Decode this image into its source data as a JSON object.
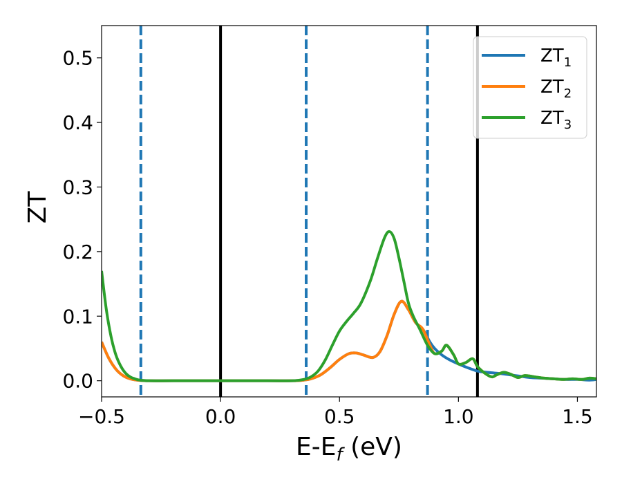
{
  "chart_data": {
    "type": "line",
    "title": "",
    "xlabel": "E-E",
    "xlabel_sub": "f",
    "xlabel_unit": " (eV)",
    "ylabel": "ZT",
    "xlim": [
      -0.5,
      1.58
    ],
    "ylim": [
      -0.025,
      0.55
    ],
    "xticks": [
      -0.5,
      0.0,
      0.5,
      1.0,
      1.5
    ],
    "xtick_labels": [
      "−0.5",
      "0.0",
      "0.5",
      "1.0",
      "1.5"
    ],
    "yticks": [
      0.0,
      0.1,
      0.2,
      0.3,
      0.4,
      0.5
    ],
    "ytick_labels": [
      "0.0",
      "0.1",
      "0.2",
      "0.3",
      "0.4",
      "0.5"
    ],
    "grid": false,
    "legend_position": "top-right",
    "vlines_solid": [
      0.0,
      1.08
    ],
    "vlines_dashed": [
      -0.335,
      0.36,
      0.87
    ],
    "vline_solid_color": "#000000",
    "vline_dashed_color": "#1f77b4",
    "series": [
      {
        "name": "ZT",
        "name_sub": "1",
        "color": "#1f77b4",
        "x": [
          -0.5,
          -0.47,
          -0.44,
          -0.41,
          -0.38,
          -0.35,
          -0.3,
          -0.2,
          0.0,
          0.2,
          0.3,
          0.35,
          0.38,
          0.42,
          0.46,
          0.5,
          0.54,
          0.57,
          0.6,
          0.64,
          0.67,
          0.7,
          0.73,
          0.76,
          0.79,
          0.82,
          0.85,
          0.88,
          0.9,
          0.93,
          0.96,
          1.0,
          1.04,
          1.08,
          1.12,
          1.15,
          1.18,
          1.22,
          1.26,
          1.3,
          1.35,
          1.4,
          1.45,
          1.5,
          1.55,
          1.58
        ],
        "y": [
          0.06,
          0.035,
          0.018,
          0.008,
          0.003,
          0.001,
          0.0,
          0.0,
          0.0,
          0.0,
          0.0,
          0.001,
          0.003,
          0.009,
          0.02,
          0.033,
          0.042,
          0.043,
          0.04,
          0.036,
          0.045,
          0.07,
          0.103,
          0.123,
          0.11,
          0.09,
          0.08,
          0.06,
          0.05,
          0.04,
          0.033,
          0.026,
          0.02,
          0.015,
          0.013,
          0.012,
          0.011,
          0.009,
          0.007,
          0.005,
          0.004,
          0.003,
          0.002,
          0.002,
          0.001,
          0.002
        ]
      },
      {
        "name": "ZT",
        "name_sub": "2",
        "color": "#ff7f0e",
        "x": [
          -0.5,
          -0.47,
          -0.44,
          -0.41,
          -0.38,
          -0.35,
          -0.3,
          -0.2,
          0.0,
          0.2,
          0.3,
          0.35,
          0.38,
          0.42,
          0.46,
          0.5,
          0.54,
          0.57,
          0.6,
          0.64,
          0.67,
          0.7,
          0.73,
          0.76,
          0.79,
          0.82,
          0.85,
          0.88,
          0.9,
          0.93,
          0.95,
          0.98,
          1.0,
          1.03,
          1.06,
          1.08,
          1.11,
          1.14,
          1.16,
          1.19,
          1.22,
          1.25,
          1.28,
          1.32,
          1.36,
          1.4,
          1.44,
          1.48,
          1.52,
          1.55,
          1.58
        ],
        "y": [
          0.06,
          0.035,
          0.018,
          0.008,
          0.003,
          0.001,
          0.0,
          0.0,
          0.0,
          0.0,
          0.0,
          0.001,
          0.003,
          0.009,
          0.02,
          0.033,
          0.042,
          0.043,
          0.04,
          0.036,
          0.045,
          0.07,
          0.103,
          0.123,
          0.11,
          0.09,
          0.08,
          0.055,
          0.042,
          0.046,
          0.055,
          0.04,
          0.026,
          0.028,
          0.034,
          0.022,
          0.012,
          0.006,
          0.009,
          0.013,
          0.01,
          0.005,
          0.008,
          0.006,
          0.004,
          0.003,
          0.002,
          0.003,
          0.002,
          0.004,
          0.003
        ]
      },
      {
        "name": "ZT",
        "name_sub": "3",
        "color": "#2ca02c",
        "x": [
          -0.5,
          -0.48,
          -0.46,
          -0.44,
          -0.42,
          -0.4,
          -0.38,
          -0.36,
          -0.34,
          -0.3,
          -0.2,
          0.0,
          0.2,
          0.3,
          0.35,
          0.38,
          0.41,
          0.44,
          0.47,
          0.5,
          0.53,
          0.56,
          0.59,
          0.63,
          0.66,
          0.69,
          0.71,
          0.73,
          0.75,
          0.77,
          0.79,
          0.81,
          0.84,
          0.87,
          0.9,
          0.93,
          0.95,
          0.98,
          1.0,
          1.03,
          1.06,
          1.08,
          1.11,
          1.14,
          1.16,
          1.19,
          1.22,
          1.25,
          1.28,
          1.32,
          1.36,
          1.4,
          1.44,
          1.48,
          1.52,
          1.55,
          1.58
        ],
        "y": [
          0.17,
          0.11,
          0.068,
          0.04,
          0.023,
          0.012,
          0.006,
          0.003,
          0.001,
          0.0,
          0.0,
          0.0,
          0.0,
          0.0,
          0.002,
          0.006,
          0.015,
          0.032,
          0.055,
          0.077,
          0.092,
          0.105,
          0.12,
          0.155,
          0.19,
          0.222,
          0.231,
          0.22,
          0.19,
          0.155,
          0.12,
          0.1,
          0.078,
          0.055,
          0.042,
          0.046,
          0.055,
          0.04,
          0.026,
          0.028,
          0.034,
          0.022,
          0.012,
          0.006,
          0.009,
          0.013,
          0.01,
          0.005,
          0.008,
          0.006,
          0.004,
          0.003,
          0.002,
          0.003,
          0.002,
          0.004,
          0.003
        ]
      }
    ]
  }
}
